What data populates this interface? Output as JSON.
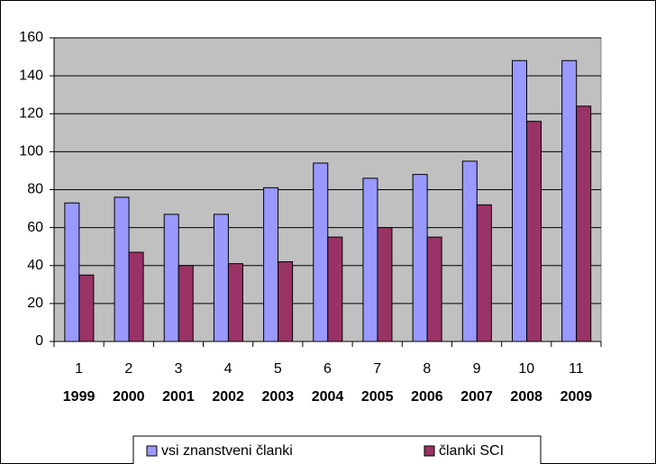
{
  "chart_data": {
    "type": "bar",
    "categories": [
      "1",
      "2",
      "3",
      "4",
      "5",
      "6",
      "7",
      "8",
      "9",
      "10",
      "11"
    ],
    "category_years": [
      "1999",
      "2000",
      "2001",
      "2002",
      "2003",
      "2004",
      "2005",
      "2006",
      "2007",
      "2008",
      "2009"
    ],
    "series": [
      {
        "name": "vsi znanstveni članki",
        "color": "#9999ff",
        "values": [
          73,
          76,
          67,
          67,
          81,
          94,
          86,
          88,
          95,
          148,
          148
        ]
      },
      {
        "name": "članki SCI",
        "color": "#993366",
        "values": [
          35,
          47,
          40,
          41,
          42,
          55,
          60,
          55,
          72,
          116,
          124
        ]
      }
    ],
    "ylim": [
      0,
      160
    ],
    "yticks": [
      0,
      20,
      40,
      60,
      80,
      100,
      120,
      140,
      160
    ],
    "grid": true,
    "legend": "bottom",
    "plot_background": "#c0c0c0"
  }
}
